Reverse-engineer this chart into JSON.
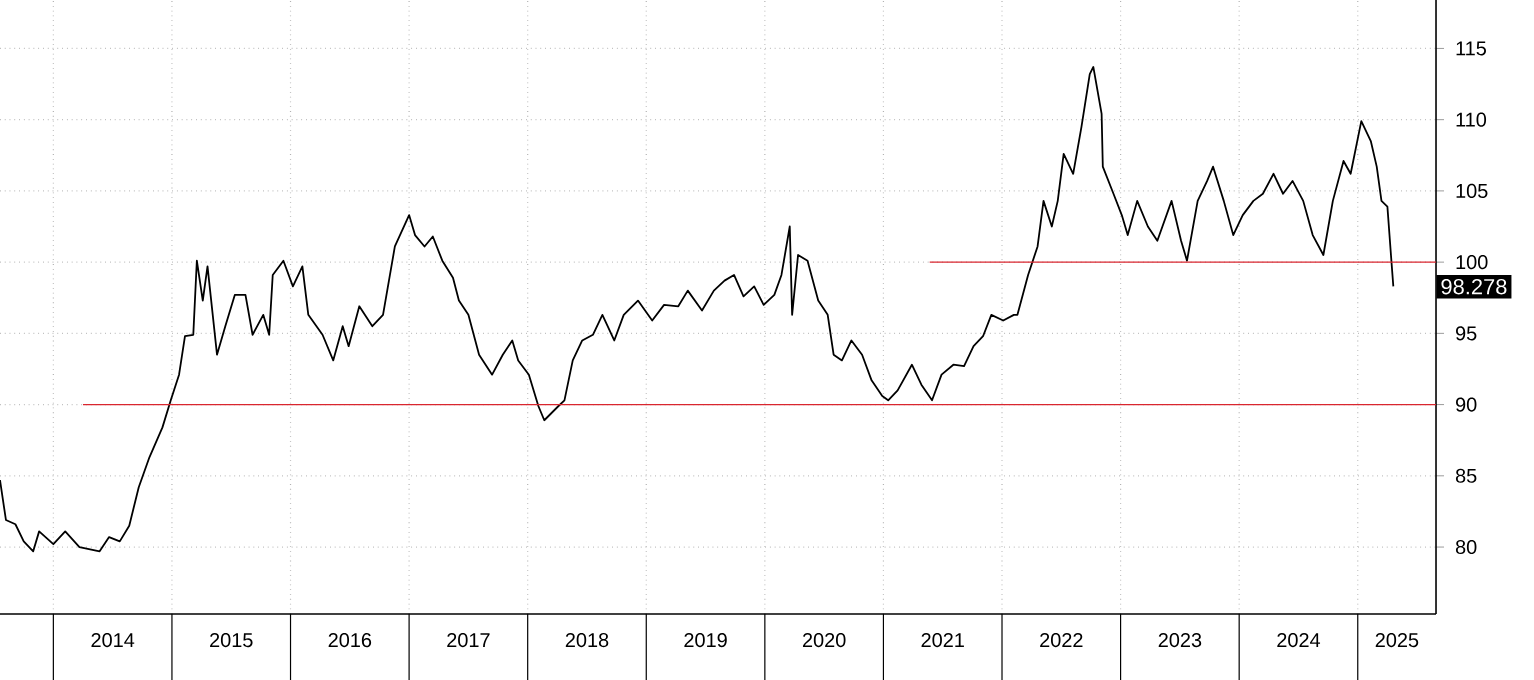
{
  "chart_data": {
    "type": "line",
    "x": [
      2013.55,
      2013.6,
      2013.68,
      2013.75,
      2013.83,
      2013.88,
      2014.0,
      2014.1,
      2014.22,
      2014.39,
      2014.47,
      2014.56,
      2014.64,
      2014.72,
      2014.81,
      2014.92,
      2014.99,
      2015.06,
      2015.11,
      2015.18,
      2015.21,
      2015.26,
      2015.3,
      2015.38,
      2015.45,
      2015.53,
      2015.62,
      2015.68,
      2015.77,
      2015.82,
      2015.85,
      2015.94,
      2016.02,
      2016.1,
      2016.15,
      2016.27,
      2016.36,
      2016.44,
      2016.49,
      2016.58,
      2016.69,
      2016.78,
      2016.83,
      2016.88,
      2017.0,
      2017.05,
      2017.13,
      2017.2,
      2017.28,
      2017.37,
      2017.42,
      2017.5,
      2017.59,
      2017.7,
      2017.79,
      2017.87,
      2017.92,
      2018.01,
      2018.09,
      2018.14,
      2018.26,
      2018.31,
      2018.38,
      2018.46,
      2018.55,
      2018.63,
      2018.73,
      2018.81,
      2018.93,
      2019.05,
      2019.15,
      2019.27,
      2019.35,
      2019.47,
      2019.57,
      2019.66,
      2019.74,
      2019.82,
      2019.91,
      2019.99,
      2020.08,
      2020.14,
      2020.21,
      2020.23,
      2020.28,
      2020.36,
      2020.45,
      2020.53,
      2020.58,
      2020.65,
      2020.73,
      2020.82,
      2020.9,
      2020.99,
      2021.04,
      2021.12,
      2021.24,
      2021.32,
      2021.41,
      2021.49,
      2021.59,
      2021.68,
      2021.76,
      2021.84,
      2021.91,
      2022.01,
      2022.1,
      2022.13,
      2022.22,
      2022.3,
      2022.35,
      2022.42,
      2022.47,
      2022.52,
      2022.6,
      2022.67,
      2022.74,
      2022.77,
      2022.84,
      2022.85,
      2022.94,
      2023.01,
      2023.06,
      2023.14,
      2023.23,
      2023.31,
      2023.43,
      2023.51,
      2023.56,
      2023.65,
      2023.73,
      2023.78,
      2023.87,
      2023.95,
      2024.03,
      2024.12,
      2024.2,
      2024.29,
      2024.37,
      2024.45,
      2024.54,
      2024.62,
      2024.71,
      2024.79,
      2024.88,
      2024.94,
      2025.03,
      2025.11,
      2025.16,
      2025.2,
      2025.25,
      2025.28,
      2025.3
    ],
    "series": [
      {
        "color": "#000000",
        "values": [
          84.7,
          81.9,
          81.6,
          80.4,
          79.7,
          81.1,
          80.2,
          81.1,
          80.0,
          79.7,
          80.7,
          80.4,
          81.5,
          84.2,
          86.3,
          88.4,
          90.3,
          92.1,
          94.8,
          94.9,
          100.1,
          97.3,
          99.7,
          93.5,
          95.5,
          97.7,
          97.7,
          94.9,
          96.3,
          94.9,
          99.1,
          100.1,
          98.3,
          99.7,
          96.3,
          94.9,
          93.1,
          95.5,
          94.1,
          96.9,
          95.5,
          96.3,
          98.7,
          101.1,
          103.3,
          101.9,
          101.1,
          101.8,
          100.1,
          98.9,
          97.3,
          96.3,
          93.5,
          92.1,
          93.5,
          94.5,
          93.1,
          92.1,
          89.9,
          88.9,
          89.9,
          90.3,
          93.1,
          94.5,
          94.9,
          96.3,
          94.5,
          96.3,
          97.3,
          95.9,
          97.0,
          96.9,
          98.0,
          96.6,
          98.0,
          98.7,
          99.1,
          97.6,
          98.3,
          97.0,
          97.7,
          99.1,
          102.5,
          96.3,
          100.5,
          100.1,
          97.3,
          96.3,
          93.5,
          93.1,
          94.5,
          93.5,
          91.7,
          90.6,
          90.3,
          91.0,
          92.8,
          91.4,
          90.3,
          92.1,
          92.8,
          92.7,
          94.1,
          94.8,
          96.3,
          95.9,
          96.3,
          96.3,
          99.1,
          101.1,
          104.3,
          102.5,
          104.3,
          107.6,
          106.2,
          109.5,
          113.2,
          113.7,
          110.4,
          106.7,
          104.8,
          103.3,
          101.9,
          104.3,
          102.5,
          101.5,
          104.3,
          101.5,
          100.1,
          104.3,
          105.7,
          106.7,
          104.3,
          101.9,
          103.3,
          104.3,
          104.8,
          106.2,
          104.8,
          105.7,
          104.3,
          101.9,
          100.5,
          104.3,
          107.1,
          106.2,
          109.9,
          108.5,
          106.7,
          104.3,
          103.9,
          100.5,
          98.3
        ]
      },
      {
        "color": "#d9262f",
        "x": [
          2014.25,
          2025.66
        ],
        "values": [
          90,
          90
        ]
      },
      {
        "color": "#d9262f",
        "x": [
          2021.39,
          2025.66
        ],
        "values": [
          100,
          100
        ]
      }
    ],
    "xlim": [
      2013.55,
      2025.66
    ],
    "ylim": [
      75.3,
      118.4
    ],
    "xticks": [
      {
        "value": 2014,
        "label": null
      },
      {
        "value": 2015,
        "label": null
      },
      {
        "value": 2016,
        "label": null
      },
      {
        "value": 2017,
        "label": null
      },
      {
        "value": 2018,
        "label": null
      },
      {
        "value": 2019,
        "label": null
      },
      {
        "value": 2020,
        "label": null
      },
      {
        "value": 2021,
        "label": null
      },
      {
        "value": 2022,
        "label": null
      },
      {
        "value": 2023,
        "label": null
      },
      {
        "value": 2024,
        "label": null
      },
      {
        "value": 2025,
        "label": null
      },
      {
        "value": 2014.5,
        "label": "2014"
      },
      {
        "value": 2015.5,
        "label": "2015"
      },
      {
        "value": 2016.5,
        "label": "2016"
      },
      {
        "value": 2017.5,
        "label": "2017"
      },
      {
        "value": 2018.5,
        "label": "2018"
      },
      {
        "value": 2019.5,
        "label": "2019"
      },
      {
        "value": 2020.5,
        "label": "2020"
      },
      {
        "value": 2021.5,
        "label": "2021"
      },
      {
        "value": 2022.5,
        "label": "2022"
      },
      {
        "value": 2023.5,
        "label": "2023"
      },
      {
        "value": 2024.5,
        "label": "2024"
      },
      {
        "value": 2025.33,
        "label": "2025"
      }
    ],
    "yticks": [
      80,
      85,
      90,
      95,
      100,
      105,
      110,
      115
    ],
    "grid": true,
    "marker": "none",
    "line_style": "solid",
    "annotations": [
      {
        "text": "98.278",
        "x": 2025.3,
        "y": 98.278
      }
    ]
  }
}
